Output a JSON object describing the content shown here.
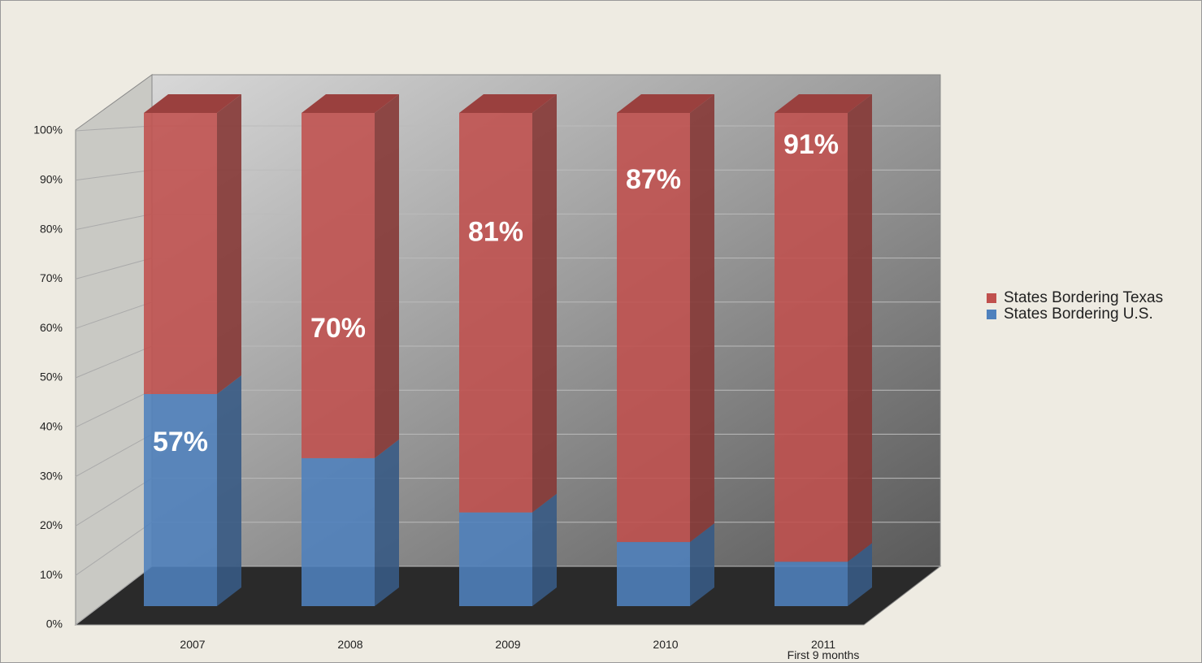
{
  "chart_data": {
    "type": "bar",
    "stacked": true,
    "categories": [
      "2007",
      "2008",
      "2009",
      "2010",
      "2011\nFirst 9 months"
    ],
    "series": [
      {
        "name": "States Bordering U.S.",
        "color": "#4f81bd",
        "values": [
          43,
          30,
          19,
          13,
          9
        ]
      },
      {
        "name": "States Bordering Texas",
        "color": "#c0504d",
        "values": [
          57,
          70,
          81,
          87,
          91
        ],
        "value_labels": [
          "57%",
          "70%",
          "81%",
          "87%",
          "91%"
        ]
      }
    ],
    "ylim": [
      0,
      100
    ],
    "yticks": [
      {
        "value": 0,
        "label": "0%"
      },
      {
        "value": 10,
        "label": "10%"
      },
      {
        "value": 20,
        "label": "20%"
      },
      {
        "value": 30,
        "label": "30%"
      },
      {
        "value": 40,
        "label": "40%"
      },
      {
        "value": 50,
        "label": "50%"
      },
      {
        "value": 60,
        "label": "60%"
      },
      {
        "value": 70,
        "label": "70%"
      },
      {
        "value": 80,
        "label": "80%"
      },
      {
        "value": 90,
        "label": "90%"
      },
      {
        "value": 100,
        "label": "100%"
      }
    ],
    "grid": true,
    "legend": "right"
  }
}
